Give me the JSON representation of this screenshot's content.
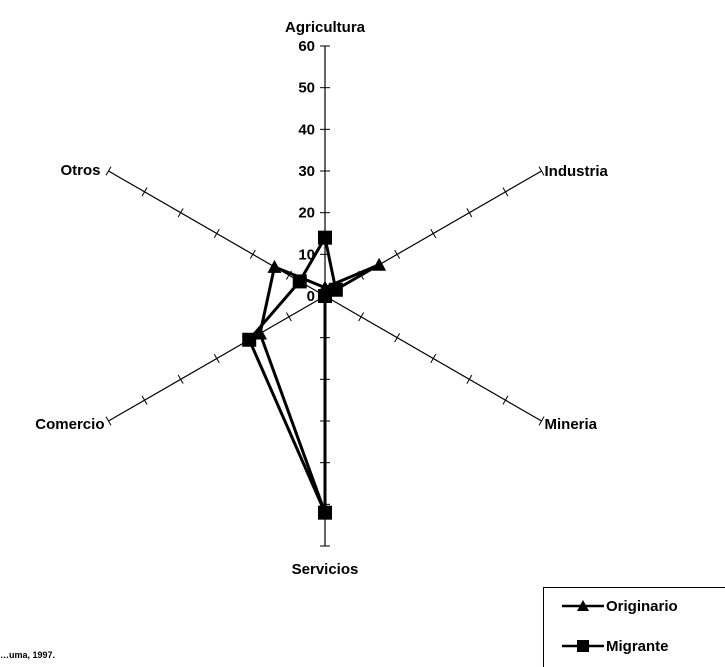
{
  "chart_data": {
    "type": "radar",
    "categories": [
      "Agricultura",
      "Industria",
      "Mineria",
      "Servicios",
      "Comercio",
      "Otros"
    ],
    "r_ticks": [
      0,
      10,
      20,
      30,
      40,
      50,
      60
    ],
    "r_range": [
      0,
      60
    ],
    "series": [
      {
        "name": "Originario",
        "marker": "triangle",
        "values": [
          2,
          15,
          0,
          52,
          18,
          14
        ]
      },
      {
        "name": "Migrante",
        "marker": "square",
        "values": [
          14,
          3,
          0,
          52,
          21,
          7
        ]
      }
    ],
    "legend": {
      "position": "bottom-right"
    },
    "color": "#000000"
  },
  "source_note": "…uma, 1997."
}
